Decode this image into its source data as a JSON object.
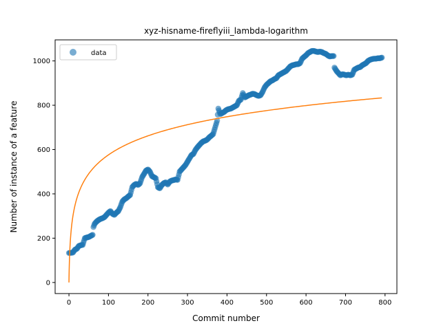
{
  "chart_data": {
    "type": "scatter",
    "title": "xyz-hisname-fireflyiii_lambda-logarithm",
    "xlabel": "Commit number",
    "ylabel": "Number of instance of a feature",
    "xlim": [
      -35,
      830
    ],
    "ylim": [
      -50,
      1095
    ],
    "xticks": [
      0,
      100,
      200,
      300,
      400,
      500,
      600,
      700,
      800
    ],
    "yticks": [
      0,
      200,
      400,
      600,
      800,
      1000
    ],
    "grid": false,
    "legend": {
      "placement": "top-left",
      "entries": [
        "data"
      ]
    },
    "colors": {
      "data": "#1f77b4",
      "fit": "#ff7f0e"
    },
    "series": [
      {
        "name": "data",
        "kind": "scatter",
        "anchors": [
          [
            0,
            133
          ],
          [
            10,
            135
          ],
          [
            15,
            148
          ],
          [
            20,
            152
          ],
          [
            25,
            165
          ],
          [
            30,
            168
          ],
          [
            35,
            170
          ],
          [
            40,
            200
          ],
          [
            45,
            203
          ],
          [
            50,
            205
          ],
          [
            55,
            210
          ],
          [
            60,
            215
          ],
          [
            62,
            250
          ],
          [
            65,
            265
          ],
          [
            70,
            275
          ],
          [
            75,
            282
          ],
          [
            80,
            287
          ],
          [
            85,
            290
          ],
          [
            90,
            295
          ],
          [
            95,
            305
          ],
          [
            100,
            315
          ],
          [
            105,
            322
          ],
          [
            110,
            310
          ],
          [
            115,
            305
          ],
          [
            120,
            315
          ],
          [
            125,
            322
          ],
          [
            130,
            340
          ],
          [
            135,
            365
          ],
          [
            140,
            375
          ],
          [
            145,
            380
          ],
          [
            150,
            388
          ],
          [
            155,
            395
          ],
          [
            160,
            430
          ],
          [
            165,
            440
          ],
          [
            170,
            445
          ],
          [
            175,
            440
          ],
          [
            180,
            448
          ],
          [
            185,
            475
          ],
          [
            190,
            490
          ],
          [
            195,
            505
          ],
          [
            200,
            510
          ],
          [
            205,
            500
          ],
          [
            210,
            480
          ],
          [
            215,
            475
          ],
          [
            220,
            470
          ],
          [
            225,
            430
          ],
          [
            230,
            425
          ],
          [
            235,
            440
          ],
          [
            240,
            448
          ],
          [
            245,
            452
          ],
          [
            250,
            442
          ],
          [
            255,
            455
          ],
          [
            260,
            460
          ],
          [
            265,
            462
          ],
          [
            270,
            465
          ],
          [
            275,
            463
          ],
          [
            280,
            500
          ],
          [
            285,
            510
          ],
          [
            290,
            520
          ],
          [
            295,
            530
          ],
          [
            300,
            545
          ],
          [
            305,
            560
          ],
          [
            310,
            575
          ],
          [
            315,
            580
          ],
          [
            320,
            598
          ],
          [
            325,
            610
          ],
          [
            330,
            620
          ],
          [
            335,
            630
          ],
          [
            340,
            637
          ],
          [
            345,
            640
          ],
          [
            350,
            645
          ],
          [
            355,
            655
          ],
          [
            360,
            662
          ],
          [
            365,
            670
          ],
          [
            370,
            700
          ],
          [
            375,
            730
          ],
          [
            378,
            785
          ],
          [
            383,
            760
          ],
          [
            388,
            765
          ],
          [
            393,
            770
          ],
          [
            398,
            778
          ],
          [
            403,
            782
          ],
          [
            410,
            785
          ],
          [
            415,
            790
          ],
          [
            420,
            795
          ],
          [
            425,
            800
          ],
          [
            430,
            820
          ],
          [
            435,
            825
          ],
          [
            440,
            855
          ],
          [
            445,
            835
          ],
          [
            450,
            840
          ],
          [
            455,
            845
          ],
          [
            460,
            848
          ],
          [
            465,
            852
          ],
          [
            470,
            850
          ],
          [
            475,
            845
          ],
          [
            480,
            842
          ],
          [
            485,
            845
          ],
          [
            490,
            860
          ],
          [
            495,
            880
          ],
          [
            500,
            892
          ],
          [
            505,
            900
          ],
          [
            510,
            908
          ],
          [
            515,
            912
          ],
          [
            520,
            918
          ],
          [
            525,
            922
          ],
          [
            530,
            935
          ],
          [
            535,
            940
          ],
          [
            540,
            945
          ],
          [
            545,
            950
          ],
          [
            550,
            955
          ],
          [
            555,
            965
          ],
          [
            560,
            975
          ],
          [
            565,
            980
          ],
          [
            570,
            982
          ],
          [
            575,
            985
          ],
          [
            580,
            985
          ],
          [
            585,
            990
          ],
          [
            590,
            1010
          ],
          [
            595,
            1018
          ],
          [
            600,
            1025
          ],
          [
            605,
            1035
          ],
          [
            610,
            1040
          ],
          [
            615,
            1045
          ],
          [
            620,
            1045
          ],
          [
            625,
            1042
          ],
          [
            630,
            1040
          ],
          [
            635,
            1042
          ],
          [
            640,
            1040
          ],
          [
            645,
            1035
          ],
          [
            650,
            1032
          ],
          [
            655,
            1025
          ],
          [
            660,
            1020
          ],
          [
            665,
            1022
          ],
          [
            670,
            1022
          ],
          [
            672,
            970
          ],
          [
            677,
            955
          ],
          [
            682,
            945
          ],
          [
            687,
            935
          ],
          [
            692,
            940
          ],
          [
            697,
            938
          ],
          [
            702,
            935
          ],
          [
            707,
            938
          ],
          [
            712,
            935
          ],
          [
            717,
            938
          ],
          [
            722,
            960
          ],
          [
            727,
            965
          ],
          [
            732,
            970
          ],
          [
            737,
            972
          ],
          [
            742,
            980
          ],
          [
            747,
            985
          ],
          [
            752,
            990
          ],
          [
            757,
            1000
          ],
          [
            762,
            1005
          ],
          [
            767,
            1008
          ],
          [
            772,
            1010
          ],
          [
            777,
            1010
          ],
          [
            782,
            1012
          ],
          [
            787,
            1012
          ],
          [
            792,
            1015
          ]
        ]
      },
      {
        "name": "",
        "kind": "line",
        "model": "a + b*ln(x+1)",
        "a": 0,
        "b": 124.8,
        "x_range": [
          0,
          792
        ]
      }
    ]
  }
}
